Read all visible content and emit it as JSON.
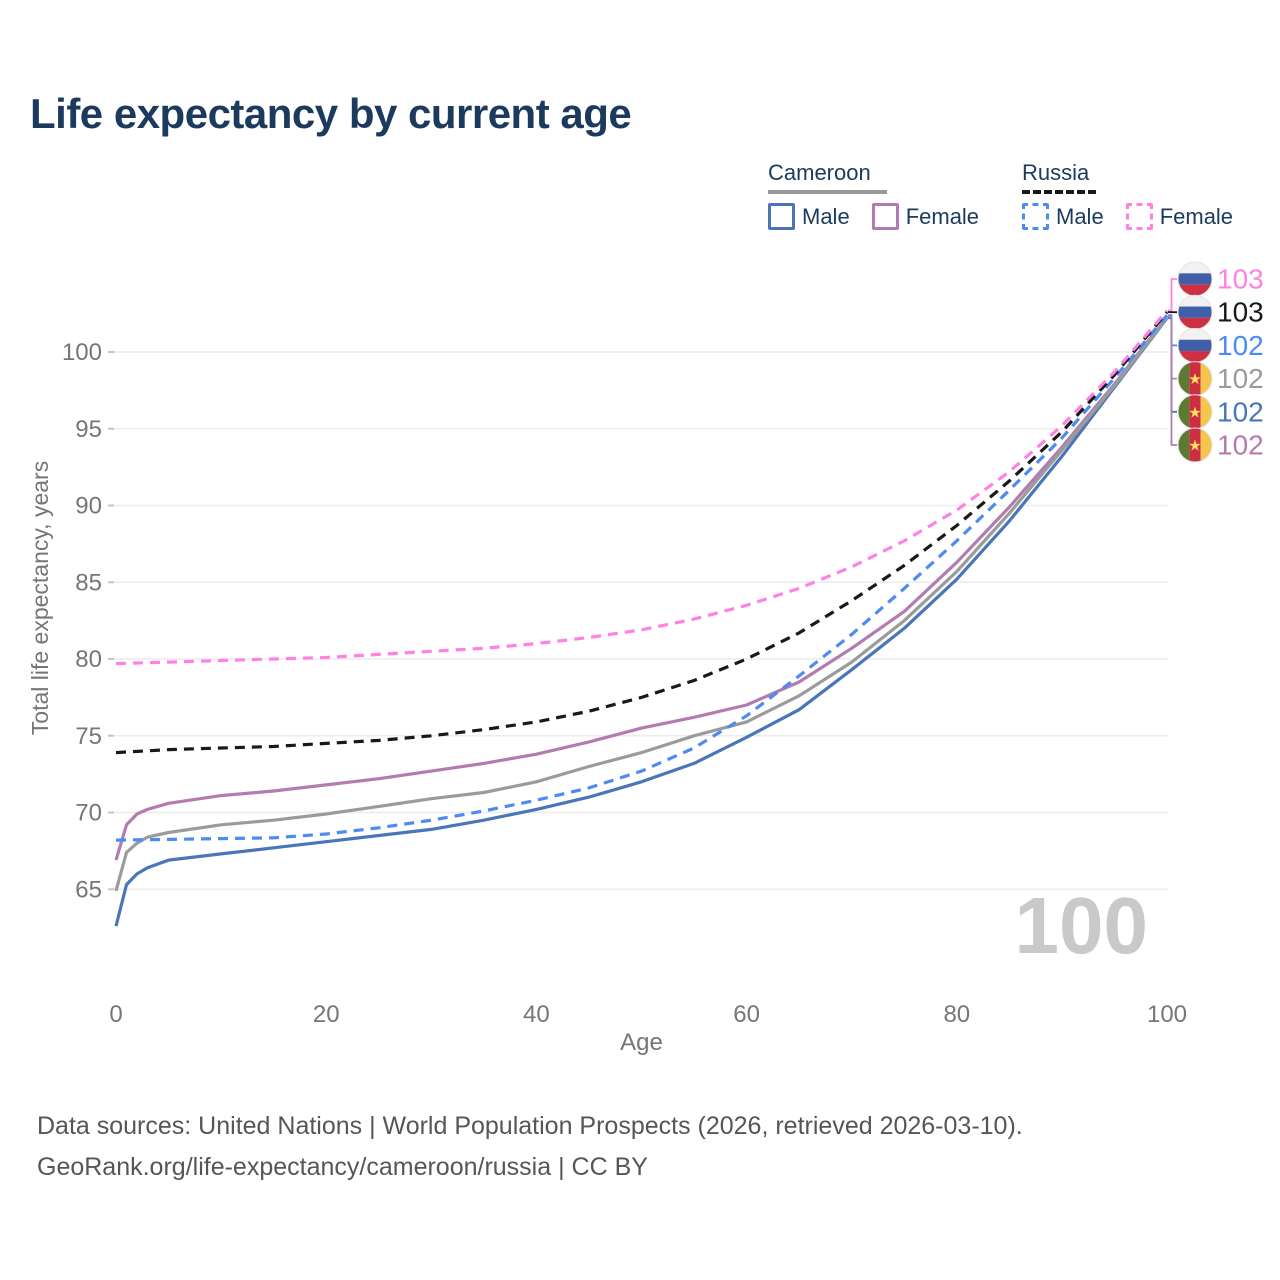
{
  "title": "Life expectancy by current age",
  "legend": {
    "cameroon": {
      "name": "Cameroon",
      "male_label": "Male",
      "female_label": "Female"
    },
    "russia": {
      "name": "Russia",
      "male_label": "Male",
      "female_label": "Female"
    }
  },
  "watermark_age": "100",
  "footer": {
    "line1": "Data sources: United Nations | World Population Prospects (2026, retrieved 2026-03-10).",
    "line2": "GeoRank.org/life-expectancy/cameroon/russia | CC BY"
  },
  "colors": {
    "title_text": "#1b3a5e",
    "axis_text": "#767676",
    "grid": "#ececec",
    "tick_stub": "#c4c4c4",
    "watermark": "#c9c9c9",
    "footer_text": "#565656",
    "cameroon_underline": "#9a9a9a",
    "russia_underline": "#191919"
  },
  "chart_data": {
    "type": "line",
    "title": "Life expectancy by current age",
    "xlabel": "Age",
    "ylabel": "Total life expectancy, years",
    "xlim": [
      0,
      100
    ],
    "ylim": [
      62,
      104
    ],
    "xticks": [
      0,
      20,
      40,
      60,
      80,
      100
    ],
    "yticks": [
      65,
      70,
      75,
      80,
      85,
      90,
      95,
      100
    ],
    "grid": true,
    "legend_position": "top-right",
    "series": [
      {
        "id": "russia-female",
        "country": "Russia",
        "sex": "Female",
        "dashed": true,
        "color": "#ff82e2",
        "end_label": "103",
        "flag": "russia-flag-icon",
        "x": [
          0,
          5,
          10,
          15,
          20,
          25,
          30,
          35,
          40,
          45,
          50,
          55,
          60,
          65,
          70,
          75,
          80,
          85,
          90,
          95,
          100
        ],
        "y": [
          79.7,
          79.8,
          79.9,
          80.0,
          80.1,
          80.3,
          80.5,
          80.7,
          81.0,
          81.4,
          81.9,
          82.6,
          83.5,
          84.6,
          86.0,
          87.7,
          89.7,
          92.2,
          95.2,
          98.7,
          102.7
        ]
      },
      {
        "id": "russia-both",
        "country": "Russia",
        "sex": "Both sexes",
        "dashed": true,
        "color": "#191919",
        "end_label": "103",
        "flag": "russia-flag-icon",
        "x": [
          0,
          5,
          10,
          15,
          20,
          25,
          30,
          35,
          40,
          45,
          50,
          55,
          60,
          65,
          70,
          75,
          80,
          85,
          90,
          95,
          100
        ],
        "y": [
          73.9,
          74.1,
          74.2,
          74.3,
          74.5,
          74.7,
          75.0,
          75.4,
          75.9,
          76.6,
          77.5,
          78.6,
          80.0,
          81.7,
          83.8,
          86.1,
          88.7,
          91.6,
          94.8,
          98.5,
          102.6
        ]
      },
      {
        "id": "russia-male",
        "country": "Russia",
        "sex": "Male",
        "dashed": true,
        "color": "#4d8bf2",
        "end_label": "102",
        "flag": "russia-flag-icon",
        "x": [
          0,
          5,
          10,
          15,
          20,
          25,
          30,
          35,
          40,
          45,
          50,
          55,
          60,
          65,
          70,
          75,
          80,
          85,
          90,
          95,
          100
        ],
        "y": [
          68.2,
          68.25,
          68.3,
          68.35,
          68.6,
          69.0,
          69.5,
          70.1,
          70.8,
          71.6,
          72.7,
          74.2,
          76.3,
          78.9,
          81.6,
          84.6,
          87.7,
          91.0,
          94.4,
          98.3,
          102.4
        ]
      },
      {
        "id": "cameroon-both",
        "country": "Cameroon",
        "sex": "Both sexes",
        "dashed": false,
        "color": "#9b9b9b",
        "end_label": "102",
        "flag": "cameroon-flag-icon",
        "x": [
          0,
          1,
          2,
          3,
          5,
          10,
          15,
          20,
          25,
          30,
          35,
          40,
          45,
          50,
          55,
          60,
          65,
          70,
          75,
          80,
          85,
          90,
          95,
          100
        ],
        "y": [
          64.9,
          67.4,
          68.0,
          68.4,
          68.7,
          69.2,
          69.5,
          69.9,
          70.4,
          70.9,
          71.3,
          72.0,
          73.0,
          73.9,
          75.0,
          75.9,
          77.6,
          79.8,
          82.5,
          85.7,
          89.5,
          93.6,
          97.8,
          102.25
        ]
      },
      {
        "id": "cameroon-male",
        "country": "Cameroon",
        "sex": "Male",
        "dashed": false,
        "color": "#4a76b9",
        "end_label": "102",
        "flag": "cameroon-flag-icon",
        "x": [
          0,
          1,
          2,
          3,
          5,
          10,
          15,
          20,
          25,
          30,
          35,
          40,
          45,
          50,
          55,
          60,
          65,
          70,
          75,
          80,
          85,
          90,
          95,
          100
        ],
        "y": [
          62.6,
          65.3,
          66.0,
          66.4,
          66.9,
          67.3,
          67.7,
          68.1,
          68.5,
          68.9,
          69.5,
          70.2,
          71.0,
          72.0,
          73.2,
          74.9,
          76.7,
          79.3,
          82.0,
          85.2,
          89.0,
          93.2,
          97.7,
          102.2
        ]
      },
      {
        "id": "cameroon-female",
        "country": "Cameroon",
        "sex": "Female",
        "dashed": false,
        "color": "#b27cb0",
        "end_label": "102",
        "flag": "cameroon-flag-icon",
        "x": [
          0,
          1,
          2,
          3,
          5,
          10,
          15,
          20,
          25,
          30,
          35,
          40,
          45,
          50,
          55,
          60,
          65,
          70,
          75,
          80,
          85,
          90,
          95,
          100
        ],
        "y": [
          66.9,
          69.2,
          69.9,
          70.2,
          70.6,
          71.1,
          71.4,
          71.8,
          72.2,
          72.7,
          73.2,
          73.8,
          74.6,
          75.5,
          76.2,
          77.0,
          78.5,
          80.7,
          83.1,
          86.3,
          89.9,
          93.8,
          97.9,
          102.3
        ]
      }
    ]
  }
}
